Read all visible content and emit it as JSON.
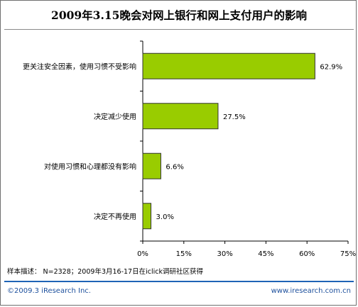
{
  "chart_data": {
    "type": "bar",
    "orientation": "horizontal",
    "title": "2009年3.15晚会对网上银行和网上支付用户的影响",
    "categories": [
      "更关注安全因素，使用习惯不受影响",
      "决定减少使用",
      "对使用习惯和心理都没有影响",
      "决定不再使用"
    ],
    "values": [
      62.9,
      27.5,
      6.6,
      3.0
    ],
    "value_labels": [
      "62.9%",
      "27.5%",
      "6.6%",
      "3.0%"
    ],
    "xlim": [
      0,
      75
    ],
    "ticks": [
      0,
      15,
      30,
      45,
      60,
      75
    ],
    "tick_labels": [
      "0%",
      "15%",
      "30%",
      "45%",
      "60%",
      "75%"
    ],
    "bar_color": "#99cc00",
    "bar_edge_color": "#333333",
    "grid": false,
    "legend": "none"
  },
  "footer": {
    "sample_note": "样本描述： N=2328；2009年3月16-17日在iclick调研社区获得",
    "copyright": "©2009.3 iResearch Inc.",
    "website": "www.iresearch.com.cn"
  },
  "colors": {
    "footer_rule": "#1f63b6",
    "footer_text": "#1c4f9c"
  }
}
